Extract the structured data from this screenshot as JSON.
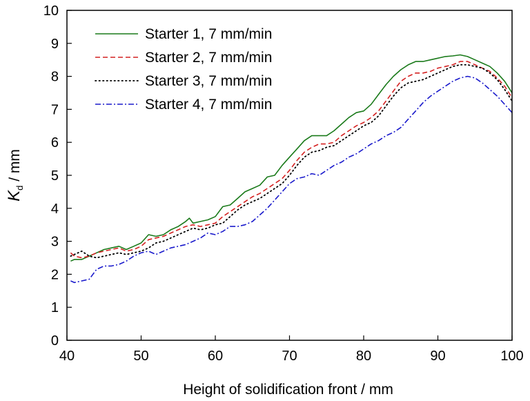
{
  "chart_data": {
    "type": "line",
    "title": "",
    "xlabel": "Height of solidification front / mm",
    "ylabel": {
      "symbol": "K",
      "subscript": "d",
      "unit": " / mm"
    },
    "xlim": [
      40,
      100
    ],
    "ylim": [
      0,
      10
    ],
    "xticks": [
      "40",
      "50",
      "60",
      "70",
      "80",
      "90",
      "100"
    ],
    "yticks": [
      "0",
      "1",
      "2",
      "3",
      "4",
      "5",
      "6",
      "7",
      "8",
      "9",
      "10"
    ],
    "grid": false,
    "legend": "top-left",
    "series": [
      {
        "name": "Starter 1, 7 mm/min",
        "color": "#1a7a1a",
        "dash": "solid",
        "x": [
          40.5,
          41,
          42,
          43,
          44,
          45,
          46,
          47,
          48,
          49,
          50,
          51,
          52,
          53,
          54,
          55,
          56,
          56.5,
          57,
          58,
          59,
          60,
          61,
          62,
          63,
          64,
          65,
          66,
          67,
          68,
          69,
          70,
          71,
          72,
          73,
          74,
          75,
          76,
          77,
          78,
          79,
          80,
          81,
          82,
          83,
          84,
          85,
          86,
          87,
          88,
          89,
          90,
          91,
          92,
          93,
          94,
          95,
          96,
          97,
          98,
          99,
          100
        ],
        "y": [
          2.4,
          2.45,
          2.45,
          2.55,
          2.65,
          2.75,
          2.8,
          2.85,
          2.75,
          2.85,
          2.95,
          3.2,
          3.15,
          3.2,
          3.35,
          3.45,
          3.6,
          3.7,
          3.55,
          3.6,
          3.65,
          3.75,
          4.05,
          4.1,
          4.3,
          4.5,
          4.6,
          4.7,
          4.95,
          5.0,
          5.3,
          5.55,
          5.8,
          6.05,
          6.2,
          6.2,
          6.2,
          6.35,
          6.55,
          6.75,
          6.9,
          6.95,
          7.15,
          7.45,
          7.75,
          8.0,
          8.2,
          8.35,
          8.45,
          8.45,
          8.5,
          8.55,
          8.6,
          8.62,
          8.65,
          8.6,
          8.5,
          8.4,
          8.3,
          8.1,
          7.85,
          7.5
        ]
      },
      {
        "name": "Starter 2, 7 mm/min",
        "color": "#d42020",
        "dash": "dashed",
        "x": [
          40.5,
          41,
          42,
          43,
          44,
          45,
          46,
          47,
          48,
          49,
          50,
          51,
          52,
          53,
          54,
          55,
          56,
          57,
          58,
          59,
          60,
          61,
          62,
          63,
          64,
          65,
          66,
          67,
          68,
          69,
          70,
          71,
          72,
          73,
          74,
          75,
          76,
          77,
          78,
          79,
          80,
          81,
          82,
          83,
          84,
          85,
          86,
          87,
          88,
          89,
          90,
          91,
          92,
          93,
          94,
          95,
          96,
          97,
          98,
          99,
          100
        ],
        "y": [
          2.65,
          2.55,
          2.5,
          2.55,
          2.65,
          2.7,
          2.75,
          2.8,
          2.7,
          2.75,
          2.85,
          3.05,
          3.1,
          3.15,
          3.25,
          3.35,
          3.45,
          3.5,
          3.45,
          3.5,
          3.55,
          3.75,
          3.9,
          4.05,
          4.2,
          4.35,
          4.45,
          4.6,
          4.75,
          4.9,
          5.15,
          5.45,
          5.7,
          5.85,
          5.95,
          5.95,
          6.0,
          6.2,
          6.35,
          6.5,
          6.6,
          6.75,
          6.95,
          7.25,
          7.55,
          7.85,
          8.0,
          8.1,
          8.1,
          8.15,
          8.25,
          8.3,
          8.35,
          8.45,
          8.45,
          8.35,
          8.25,
          8.15,
          7.95,
          7.7,
          7.35
        ]
      },
      {
        "name": "Starter 3, 7 mm/min",
        "color": "#000000",
        "dash": "dotted",
        "x": [
          40.5,
          41,
          42,
          43,
          44,
          45,
          46,
          47,
          48,
          49,
          50,
          51,
          52,
          53,
          54,
          55,
          56,
          57,
          58,
          59,
          60,
          61,
          62,
          63,
          64,
          65,
          66,
          67,
          68,
          69,
          70,
          71,
          72,
          73,
          74,
          75,
          76,
          77,
          78,
          79,
          80,
          81,
          82,
          83,
          84,
          85,
          86,
          87,
          88,
          89,
          90,
          91,
          92,
          93,
          94,
          95,
          96,
          97,
          98,
          99,
          100
        ],
        "y": [
          2.55,
          2.6,
          2.7,
          2.55,
          2.5,
          2.55,
          2.6,
          2.65,
          2.6,
          2.65,
          2.7,
          2.8,
          2.95,
          3.0,
          3.1,
          3.2,
          3.3,
          3.4,
          3.35,
          3.4,
          3.5,
          3.55,
          3.75,
          3.95,
          4.1,
          4.2,
          4.3,
          4.45,
          4.6,
          4.75,
          5.0,
          5.3,
          5.55,
          5.7,
          5.75,
          5.85,
          5.9,
          6.05,
          6.2,
          6.35,
          6.5,
          6.6,
          6.8,
          7.1,
          7.4,
          7.65,
          7.8,
          7.85,
          7.9,
          8.0,
          8.1,
          8.2,
          8.3,
          8.35,
          8.35,
          8.3,
          8.25,
          8.1,
          7.9,
          7.6,
          7.25
        ]
      },
      {
        "name": "Starter 4, 7 mm/min",
        "color": "#1a1acc",
        "dash": "dashdot",
        "x": [
          40.5,
          41,
          42,
          43,
          44,
          45,
          46,
          47,
          48,
          49,
          50,
          51,
          52,
          53,
          54,
          55,
          56,
          57,
          58,
          59,
          60,
          61,
          62,
          63,
          64,
          65,
          66,
          67,
          68,
          69,
          70,
          71,
          72,
          73,
          74,
          75,
          76,
          77,
          78,
          79,
          80,
          81,
          82,
          83,
          84,
          85,
          86,
          87,
          88,
          89,
          90,
          91,
          92,
          93,
          94,
          95,
          96,
          97,
          98,
          99,
          100
        ],
        "y": [
          1.8,
          1.75,
          1.8,
          1.85,
          2.15,
          2.25,
          2.25,
          2.3,
          2.4,
          2.55,
          2.65,
          2.7,
          2.6,
          2.7,
          2.8,
          2.85,
          2.9,
          3.0,
          3.1,
          3.25,
          3.2,
          3.3,
          3.45,
          3.45,
          3.5,
          3.6,
          3.8,
          4.0,
          4.25,
          4.5,
          4.75,
          4.9,
          4.95,
          5.05,
          5.0,
          5.15,
          5.3,
          5.4,
          5.55,
          5.65,
          5.8,
          5.95,
          6.05,
          6.2,
          6.3,
          6.45,
          6.7,
          6.95,
          7.2,
          7.4,
          7.55,
          7.7,
          7.85,
          7.95,
          8.0,
          7.95,
          7.8,
          7.6,
          7.4,
          7.15,
          6.9
        ]
      }
    ]
  }
}
